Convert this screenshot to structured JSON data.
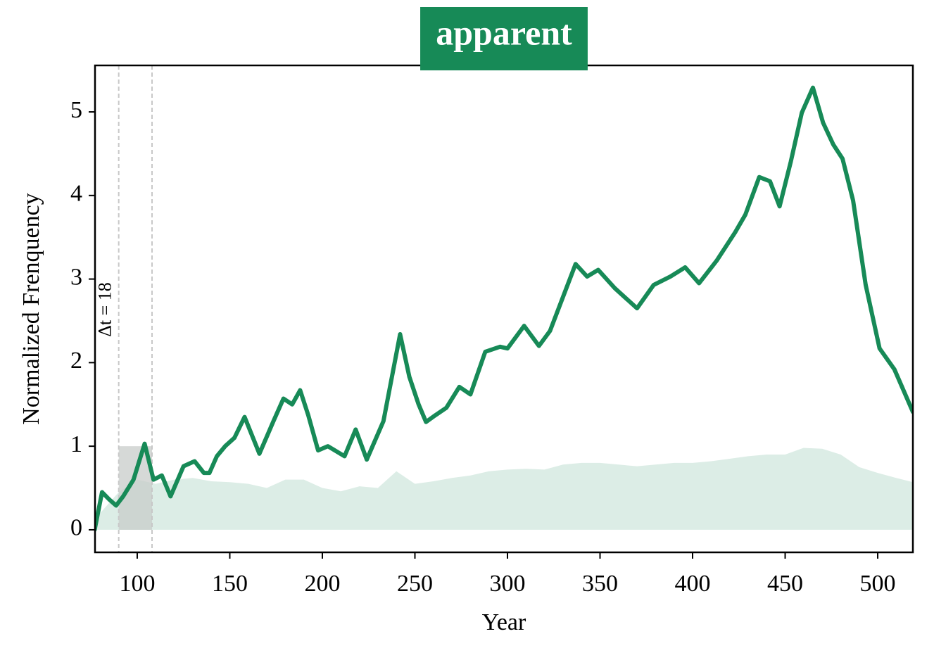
{
  "chart_data": {
    "type": "line",
    "title": "apparent",
    "title_color": "#178a57",
    "xlabel": "Year",
    "ylabel": "Normalized Frenquency",
    "xlim": [
      77.2,
      519
    ],
    "ylim": [
      -0.27,
      5.556
    ],
    "xticks": [
      100,
      150,
      200,
      250,
      300,
      350,
      400,
      450,
      500
    ],
    "yticks": [
      0,
      1,
      2,
      3,
      4,
      5
    ],
    "line": {
      "color": "#178a57",
      "x": [
        77,
        81,
        85,
        88.6,
        92.4,
        98,
        104,
        108.8,
        113.3,
        118,
        125,
        131,
        136,
        139,
        143,
        147.5,
        152.5,
        158,
        166,
        173.4,
        179,
        183.7,
        188,
        192.4,
        197.7,
        203,
        212,
        218,
        224,
        233,
        242,
        247,
        252,
        256,
        261,
        267,
        274,
        280,
        288,
        296,
        300,
        309,
        317,
        323,
        336.8,
        343,
        349,
        358,
        370,
        379,
        388,
        396,
        403.5,
        413,
        423,
        428.5,
        436,
        441.8,
        447,
        453,
        459,
        465,
        470.5,
        476,
        481,
        486.7,
        493.5,
        501,
        509,
        519
      ],
      "values": [
        0,
        0.45,
        0.36,
        0.29,
        0.4,
        0.6,
        1.03,
        0.6,
        0.65,
        0.4,
        0.76,
        0.82,
        0.68,
        0.68,
        0.88,
        1.0,
        1.1,
        1.35,
        0.91,
        1.29,
        1.57,
        1.5,
        1.67,
        1.37,
        0.95,
        1.0,
        0.88,
        1.2,
        0.84,
        1.3,
        2.34,
        1.83,
        1.5,
        1.29,
        1.37,
        1.46,
        1.71,
        1.62,
        2.13,
        2.19,
        2.17,
        2.44,
        2.2,
        2.38,
        3.18,
        3.03,
        3.11,
        2.89,
        2.65,
        2.93,
        3.03,
        3.14,
        2.95,
        3.22,
        3.56,
        3.77,
        4.22,
        4.17,
        3.87,
        4.4,
        4.99,
        5.29,
        4.87,
        4.61,
        4.44,
        3.94,
        2.93,
        2.17,
        1.92,
        1.41
      ]
    },
    "area": {
      "color": "#dcede6",
      "x": [
        77,
        80,
        90,
        100,
        110,
        120,
        130,
        140,
        150,
        160,
        170,
        180,
        190,
        200,
        210,
        220,
        230,
        240,
        250,
        260,
        270,
        280,
        290,
        300,
        310,
        320,
        330,
        340,
        350,
        360,
        370,
        380,
        390,
        400,
        410,
        420,
        430,
        440,
        450,
        460,
        470,
        480,
        490,
        500,
        510,
        519
      ],
      "values": [
        0,
        0.2,
        0.45,
        0.6,
        0.55,
        0.6,
        0.62,
        0.58,
        0.57,
        0.55,
        0.5,
        0.6,
        0.6,
        0.5,
        0.46,
        0.52,
        0.5,
        0.7,
        0.55,
        0.58,
        0.62,
        0.65,
        0.7,
        0.72,
        0.73,
        0.72,
        0.78,
        0.8,
        0.8,
        0.78,
        0.76,
        0.78,
        0.8,
        0.8,
        0.82,
        0.85,
        0.88,
        0.9,
        0.9,
        0.98,
        0.97,
        0.9,
        0.75,
        0.68,
        0.62,
        0.57
      ]
    },
    "highlight": {
      "xrange": [
        90,
        108
      ],
      "yrange": [
        0,
        1
      ],
      "color": "#c8ccca",
      "annotation": "Δt = 18"
    }
  }
}
